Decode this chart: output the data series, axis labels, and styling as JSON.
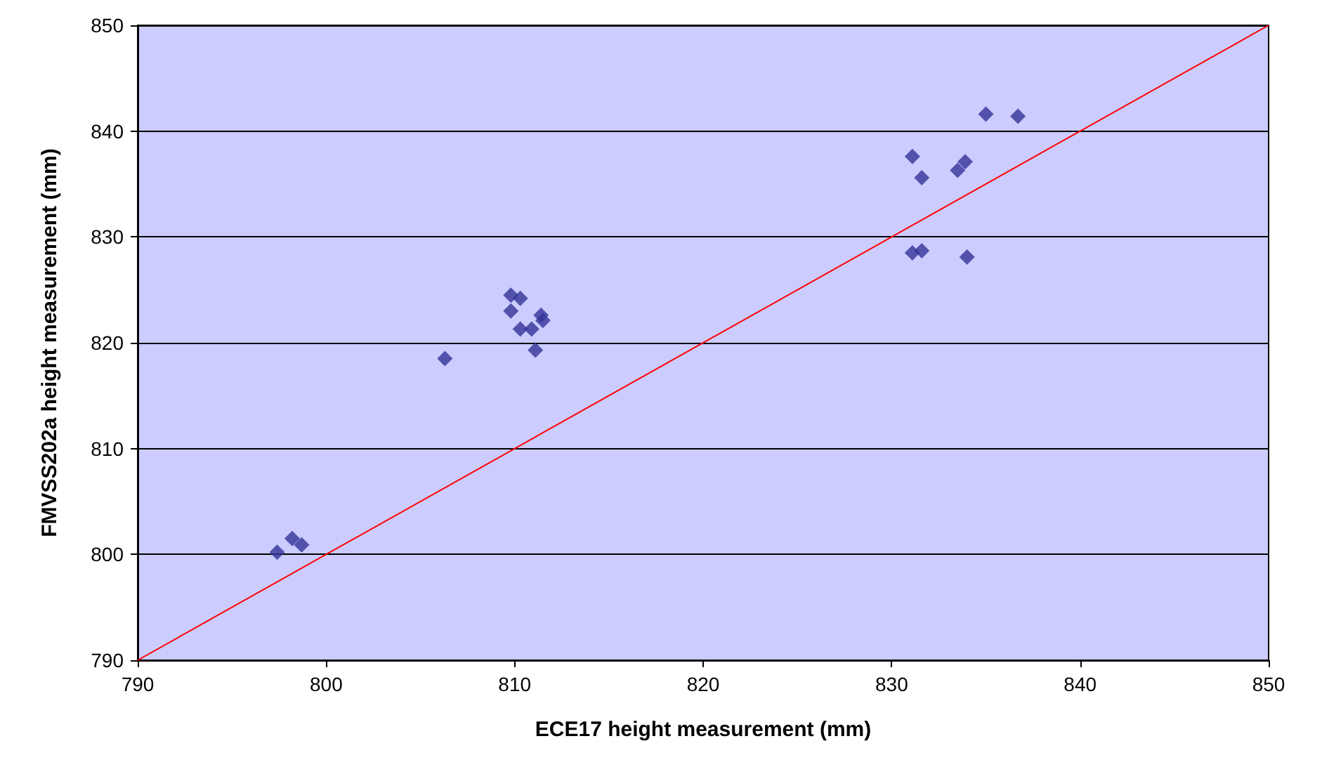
{
  "chart_data": {
    "type": "scatter",
    "xlabel": "ECE17 height measurement (mm)",
    "ylabel": "FMVSS202a height measurement (mm)",
    "xlim": [
      790,
      850
    ],
    "xticks": [
      790,
      800,
      810,
      820,
      830,
      840,
      850
    ],
    "ylim": [
      790,
      850
    ],
    "yticks": [
      790,
      800,
      810,
      820,
      830,
      840,
      850
    ],
    "grid": "y",
    "marker": "diamond",
    "series": [
      {
        "color": "#333399",
        "x": [
          797.4,
          798.2,
          798.7,
          806.3,
          809.8,
          810.3,
          809.8,
          810.3,
          810.9,
          811.1,
          811.4,
          811.5,
          835.0,
          836.7,
          831.1,
          831.6,
          833.5,
          833.9,
          831.1,
          831.6,
          834.0
        ],
        "values": [
          800.2,
          801.5,
          800.9,
          818.5,
          824.5,
          824.2,
          823.0,
          821.3,
          821.3,
          819.3,
          822.6,
          822.1,
          841.6,
          841.4,
          837.6,
          835.6,
          836.3,
          837.1,
          828.5,
          828.7,
          828.1
        ]
      },
      {
        "type": "line",
        "color": "#ff0000",
        "marker": "none",
        "x": [
          790,
          850
        ],
        "values": [
          790,
          850
        ]
      }
    ]
  }
}
